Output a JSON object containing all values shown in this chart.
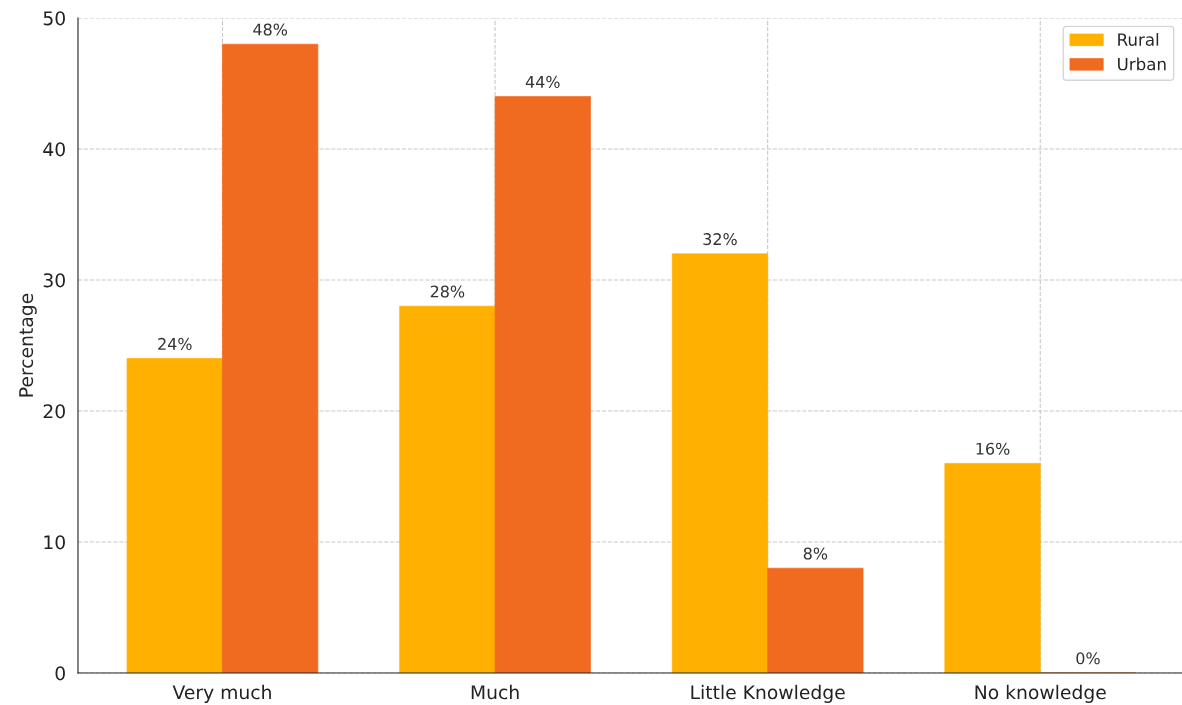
{
  "chart_data": {
    "type": "bar",
    "ylabel": "Percentage",
    "categories": [
      "Very much",
      "Much",
      "Little Knowledge",
      "No knowledge"
    ],
    "series": [
      {
        "name": "Rural",
        "color": "#ffb000",
        "values": [
          24,
          28,
          32,
          16
        ],
        "value_labels": [
          "24%",
          "28%",
          "32%",
          "16%"
        ]
      },
      {
        "name": "Urban",
        "color": "#f06a20",
        "values": [
          48,
          44,
          8,
          0
        ],
        "value_labels": [
          "48%",
          "44%",
          "8%",
          "0%"
        ]
      }
    ],
    "ylim": [
      0,
      50
    ],
    "yticks": [
      0,
      10,
      20,
      30,
      40,
      50
    ],
    "grid": true,
    "legend": "top right"
  }
}
